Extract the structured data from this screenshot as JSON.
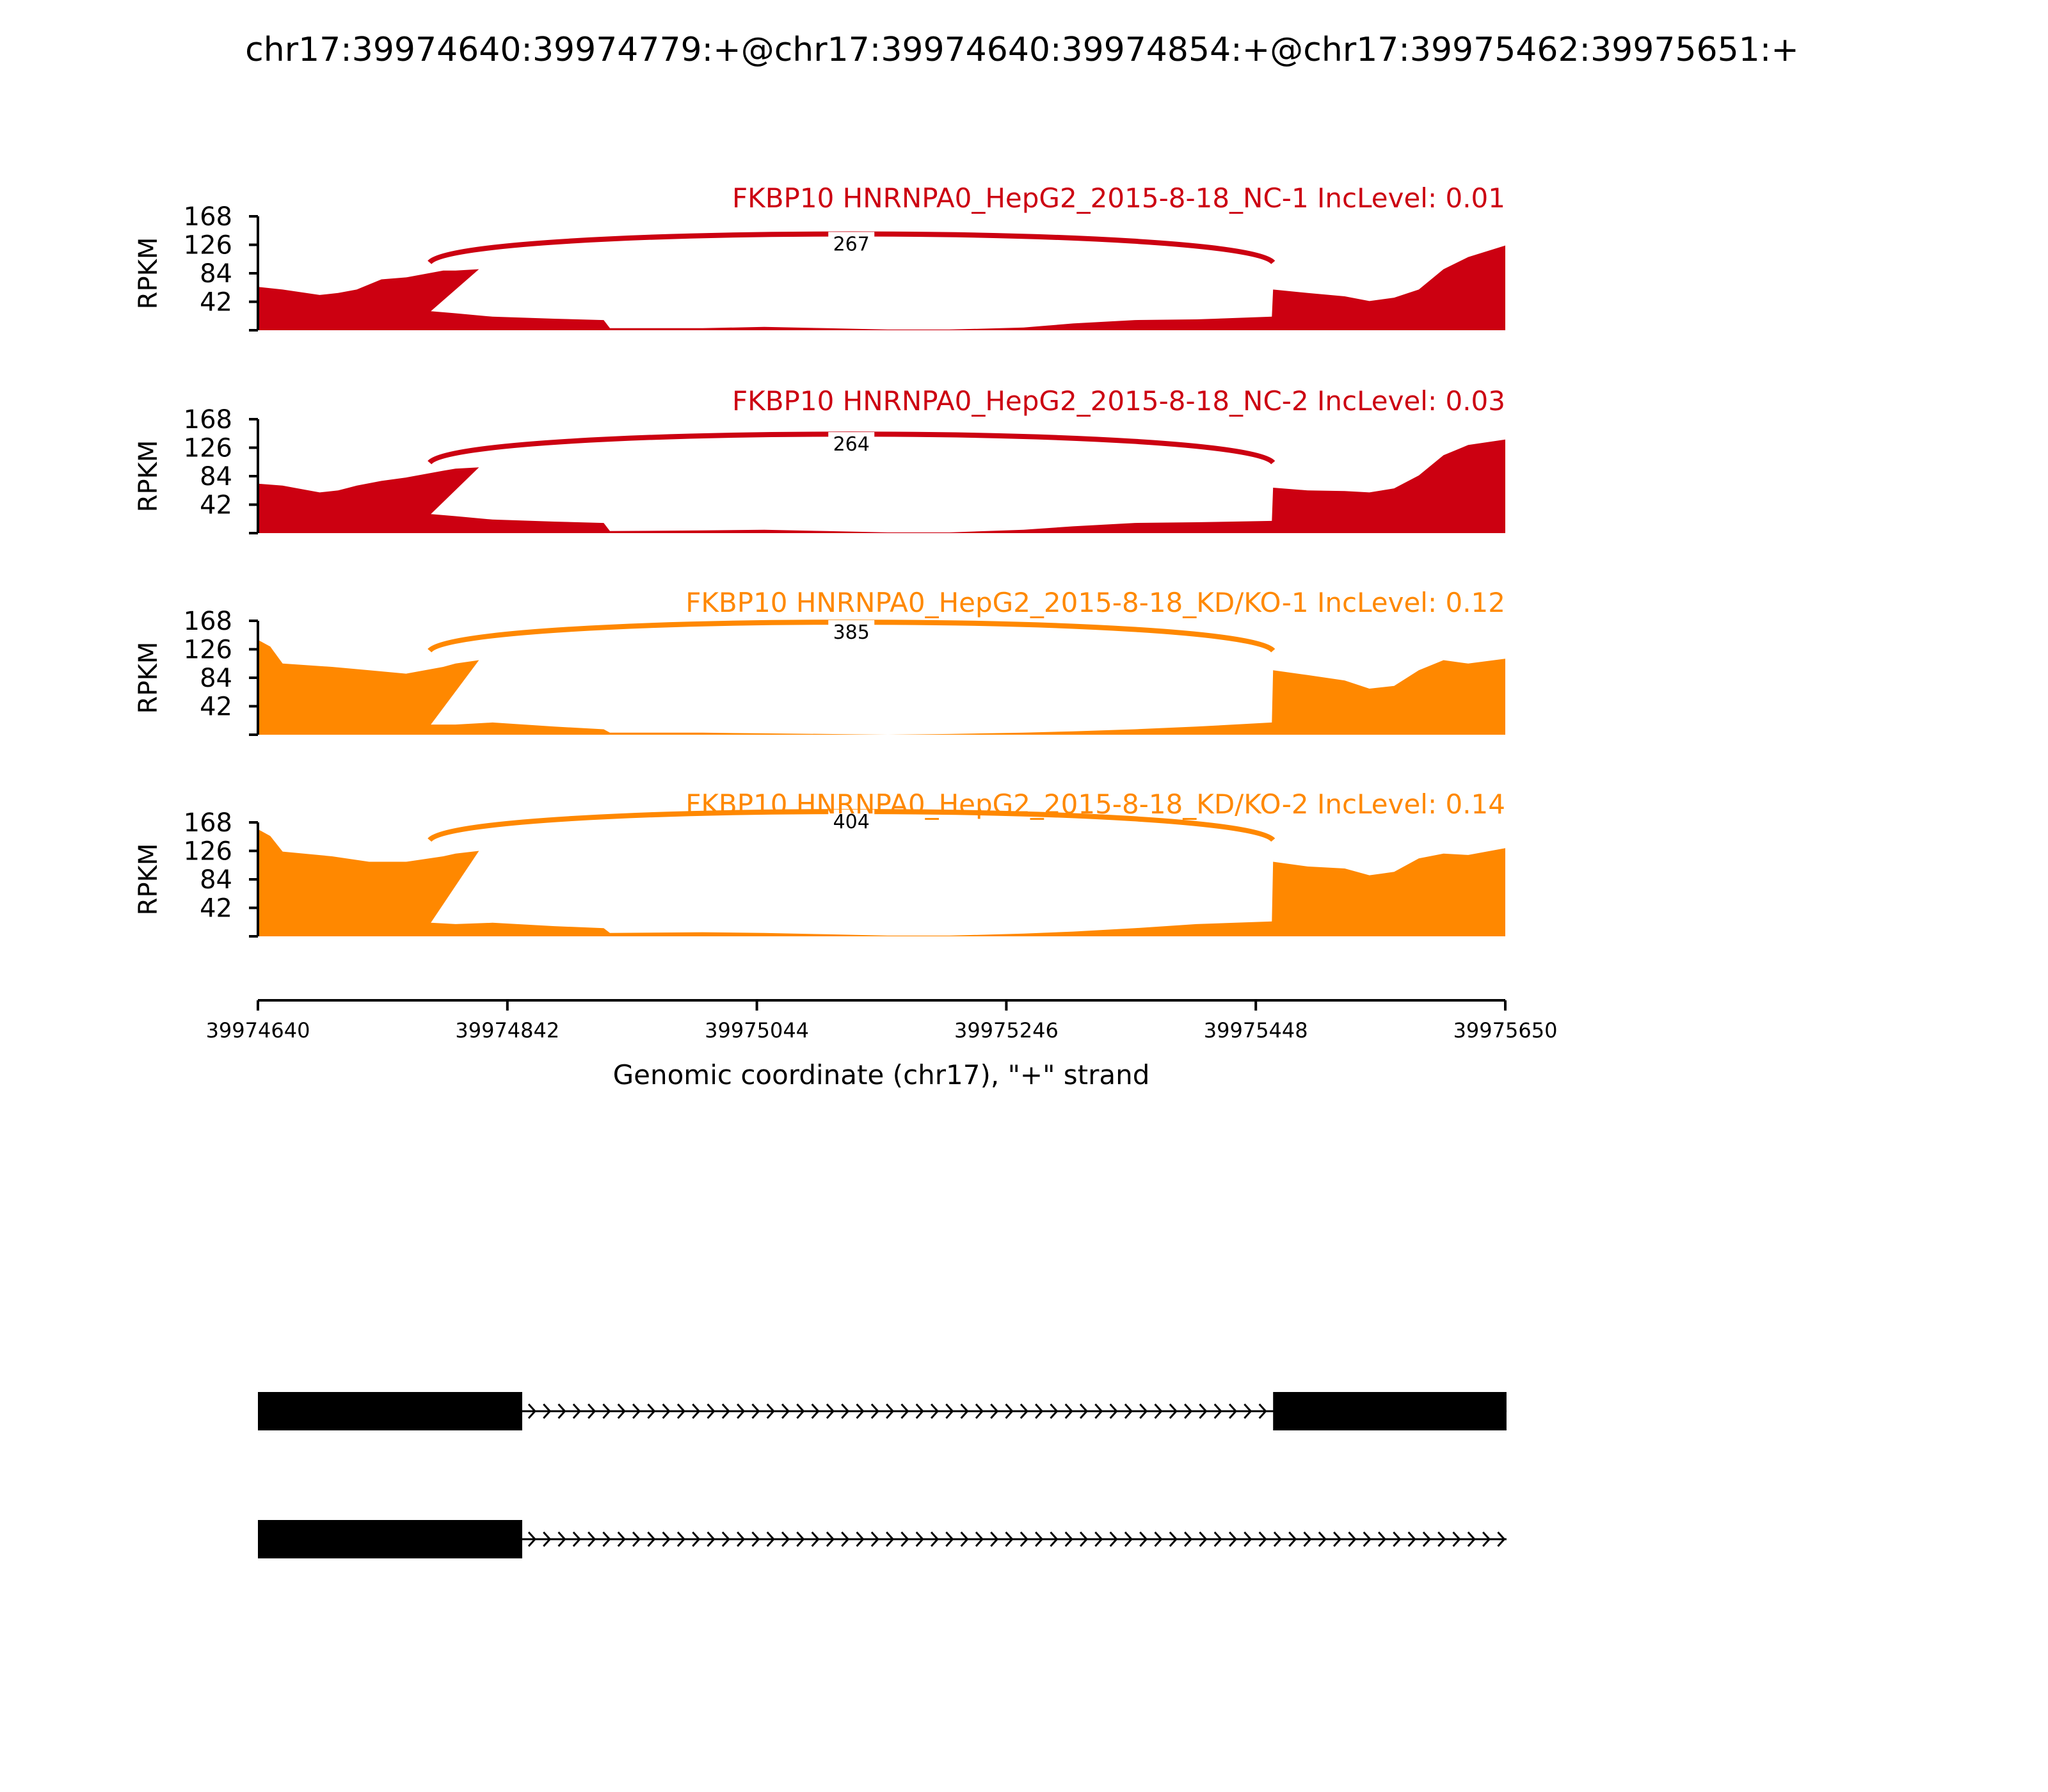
{
  "chart_data": {
    "type": "area",
    "title": "chr17:39974640:39974779:+@chr17:39974640:39974854:+@chr17:39975462:39975651:+",
    "xlabel": "Genomic coordinate (chr17), \"+\" strand",
    "ylabel": "RPKM",
    "xlim": [
      39974640,
      39975650
    ],
    "ylim": [
      0,
      168
    ],
    "yticks": [
      42,
      84,
      126,
      168
    ],
    "xticks": [
      "39974640",
      "39974842",
      "39975044",
      "39975246",
      "39975448",
      "39975650"
    ],
    "colors": {
      "NC": "#CC0011",
      "KD": "#FF8800"
    },
    "tracks": [
      {
        "name": "FKBP10 HNRNPA0_HepG2_2015-8-18_NC-1 IncLevel: 0.01",
        "color": "#CC0011",
        "junction": {
          "from": 39974779,
          "to": 39975462,
          "count": "267",
          "peak": 128
        },
        "coverage": [
          [
            39974640,
            64
          ],
          [
            39974660,
            60
          ],
          [
            39974690,
            52
          ],
          [
            39974705,
            55
          ],
          [
            39974720,
            60
          ],
          [
            39974740,
            75
          ],
          [
            39974760,
            78
          ],
          [
            39974790,
            88
          ],
          [
            39974800,
            88
          ],
          [
            39974819,
            90
          ],
          [
            39974780,
            28
          ],
          [
            39974800,
            25
          ],
          [
            39974830,
            20
          ],
          [
            39974880,
            17
          ],
          [
            39974920,
            15
          ],
          [
            39974925,
            3
          ],
          [
            39975000,
            3
          ],
          [
            39975050,
            5
          ],
          [
            39975100,
            3
          ],
          [
            39975150,
            1
          ],
          [
            39975200,
            1
          ],
          [
            39975260,
            4
          ],
          [
            39975300,
            10
          ],
          [
            39975350,
            15
          ],
          [
            39975400,
            16
          ],
          [
            39975461,
            20
          ],
          [
            39975462,
            60
          ],
          [
            39975490,
            55
          ],
          [
            39975520,
            50
          ],
          [
            39975540,
            43
          ],
          [
            39975560,
            48
          ],
          [
            39975580,
            60
          ],
          [
            39975600,
            90
          ],
          [
            39975620,
            108
          ],
          [
            39975650,
            125
          ]
        ]
      },
      {
        "name": "FKBP10 HNRNPA0_HepG2_2015-8-18_NC-2 IncLevel: 0.03",
        "color": "#CC0011",
        "junction": {
          "from": 39974779,
          "to": 39975462,
          "count": "264",
          "peak": 132
        },
        "coverage": [
          [
            39974640,
            73
          ],
          [
            39974660,
            70
          ],
          [
            39974690,
            60
          ],
          [
            39974705,
            63
          ],
          [
            39974720,
            70
          ],
          [
            39974740,
            77
          ],
          [
            39974760,
            82
          ],
          [
            39974790,
            92
          ],
          [
            39974800,
            95
          ],
          [
            39974819,
            97
          ],
          [
            39974780,
            28
          ],
          [
            39974800,
            25
          ],
          [
            39974830,
            20
          ],
          [
            39974880,
            17
          ],
          [
            39974920,
            15
          ],
          [
            39974925,
            3
          ],
          [
            39975000,
            4
          ],
          [
            39975050,
            5
          ],
          [
            39975100,
            3
          ],
          [
            39975150,
            1
          ],
          [
            39975200,
            1
          ],
          [
            39975260,
            5
          ],
          [
            39975300,
            10
          ],
          [
            39975350,
            15
          ],
          [
            39975400,
            16
          ],
          [
            39975461,
            18
          ],
          [
            39975462,
            67
          ],
          [
            39975490,
            63
          ],
          [
            39975520,
            62
          ],
          [
            39975540,
            60
          ],
          [
            39975560,
            66
          ],
          [
            39975580,
            85
          ],
          [
            39975600,
            115
          ],
          [
            39975620,
            130
          ],
          [
            39975650,
            138
          ]
        ]
      },
      {
        "name": "FKBP10 HNRNPA0_HepG2_2015-8-18_KD/KO-1 IncLevel: 0.12",
        "color": "#FF8800",
        "junction": {
          "from": 39974779,
          "to": 39975462,
          "count": "385",
          "peak": 152
        },
        "coverage": [
          [
            39974640,
            140
          ],
          [
            39974650,
            130
          ],
          [
            39974660,
            105
          ],
          [
            39974700,
            100
          ],
          [
            39974730,
            95
          ],
          [
            39974760,
            90
          ],
          [
            39974790,
            100
          ],
          [
            39974800,
            105
          ],
          [
            39974819,
            110
          ],
          [
            39974780,
            15
          ],
          [
            39974800,
            15
          ],
          [
            39974830,
            18
          ],
          [
            39974880,
            12
          ],
          [
            39974920,
            8
          ],
          [
            39974925,
            3
          ],
          [
            39975000,
            3
          ],
          [
            39975050,
            2
          ],
          [
            39975100,
            1
          ],
          [
            39975150,
            0
          ],
          [
            39975200,
            1
          ],
          [
            39975260,
            3
          ],
          [
            39975300,
            5
          ],
          [
            39975350,
            8
          ],
          [
            39975400,
            12
          ],
          [
            39975461,
            18
          ],
          [
            39975462,
            95
          ],
          [
            39975490,
            88
          ],
          [
            39975520,
            80
          ],
          [
            39975540,
            68
          ],
          [
            39975560,
            72
          ],
          [
            39975580,
            95
          ],
          [
            39975600,
            110
          ],
          [
            39975620,
            105
          ],
          [
            39975650,
            112
          ]
        ]
      },
      {
        "name": "FKBP10 HNRNPA0_HepG2_2015-8-18_KD/KO-2 IncLevel: 0.14",
        "color": "#FF8800",
        "junction": {
          "from": 39974779,
          "to": 39975462,
          "count": "404",
          "peak": 170
        },
        "coverage": [
          [
            39974640,
            158
          ],
          [
            39974650,
            148
          ],
          [
            39974660,
            125
          ],
          [
            39974700,
            118
          ],
          [
            39974730,
            110
          ],
          [
            39974760,
            110
          ],
          [
            39974790,
            118
          ],
          [
            39974800,
            122
          ],
          [
            39974819,
            126
          ],
          [
            39974780,
            20
          ],
          [
            39974800,
            18
          ],
          [
            39974830,
            20
          ],
          [
            39974880,
            15
          ],
          [
            39974920,
            12
          ],
          [
            39974925,
            5
          ],
          [
            39975000,
            6
          ],
          [
            39975050,
            5
          ],
          [
            39975100,
            3
          ],
          [
            39975150,
            1
          ],
          [
            39975200,
            1
          ],
          [
            39975260,
            4
          ],
          [
            39975300,
            7
          ],
          [
            39975350,
            12
          ],
          [
            39975400,
            18
          ],
          [
            39975461,
            22
          ],
          [
            39975462,
            110
          ],
          [
            39975490,
            103
          ],
          [
            39975520,
            100
          ],
          [
            39975540,
            90
          ],
          [
            39975560,
            95
          ],
          [
            39975580,
            115
          ],
          [
            39975600,
            122
          ],
          [
            39975620,
            120
          ],
          [
            39975650,
            130
          ]
        ]
      }
    ],
    "isoforms": [
      {
        "exons": [
          [
            39974640,
            39974854
          ],
          [
            39975462,
            39975651
          ]
        ],
        "intron": [
          39974854,
          39975462
        ],
        "line_end": 39975651
      },
      {
        "exons": [
          [
            39974640,
            39974854
          ]
        ],
        "intron": [
          39974854,
          39975651
        ],
        "line_end": 39975651
      }
    ]
  }
}
